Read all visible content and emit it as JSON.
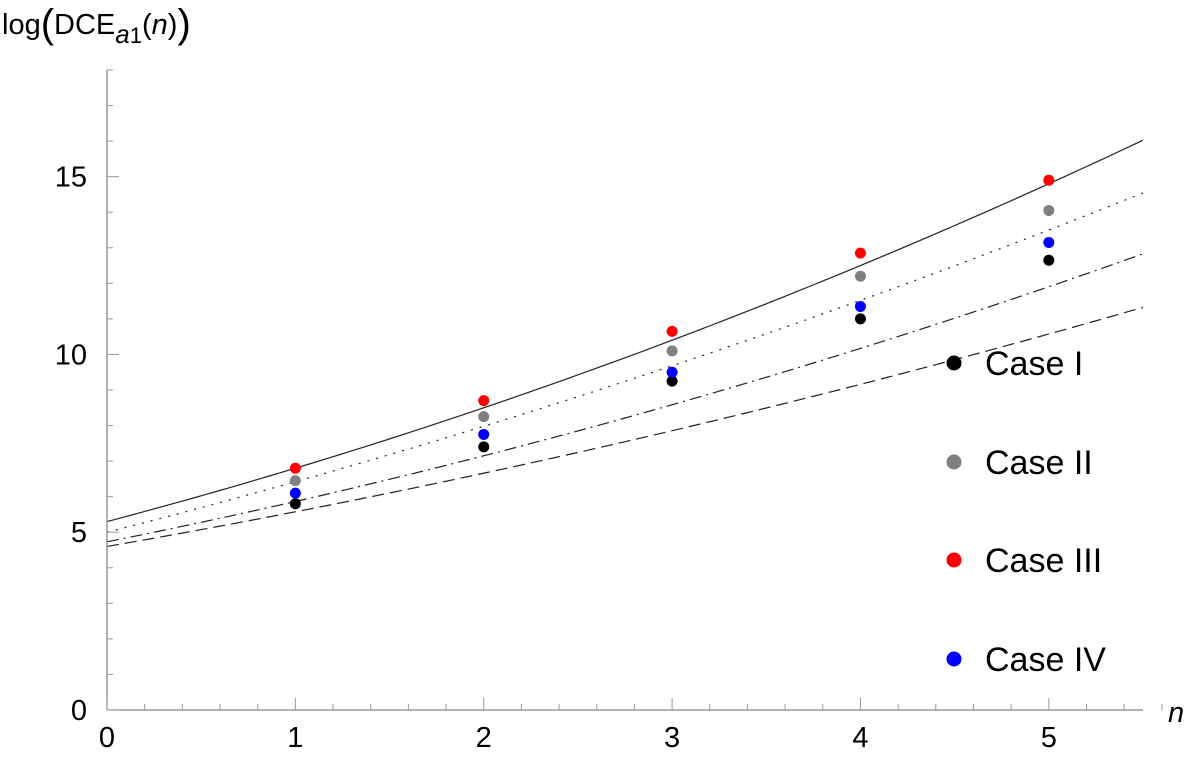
{
  "chart_data": {
    "type": "scatter",
    "ylabel_parts": {
      "pre": "log",
      "mid": "DCE",
      "sub_a": "a",
      "sub_1": "1",
      "arg_open": "(",
      "arg": "n",
      "arg_close": ")"
    },
    "xlabel": "n",
    "xlim": [
      0,
      5.5
    ],
    "ylim": [
      0,
      18
    ],
    "x_ticks": [
      0,
      1,
      2,
      3,
      4,
      5
    ],
    "y_ticks": [
      0,
      5,
      10,
      15
    ],
    "legend_position": "right",
    "series": [
      {
        "name": "Case I",
        "color": "#000000",
        "line_style": "dashed",
        "x": [
          1,
          2,
          3,
          4,
          5
        ],
        "y": [
          5.8,
          7.4,
          9.25,
          11.0,
          12.65
        ],
        "curve": [
          4.6,
          0.92,
          0.055
        ]
      },
      {
        "name": "Case II",
        "color": "#808080",
        "line_style": "dotted",
        "x": [
          1,
          2,
          3,
          4,
          5
        ],
        "y": [
          6.45,
          8.25,
          10.1,
          12.2,
          14.05
        ],
        "curve": [
          5.0,
          1.35,
          0.07
        ]
      },
      {
        "name": "Case III",
        "color": "#ff0000",
        "line_style": "solid",
        "x": [
          1,
          2,
          3,
          4,
          5
        ],
        "y": [
          6.8,
          8.7,
          10.65,
          12.85,
          14.9
        ],
        "curve": [
          5.3,
          1.4,
          0.1
        ]
      },
      {
        "name": "Case IV",
        "color": "#0000ff",
        "line_style": "dashdot",
        "x": [
          1,
          2,
          3,
          4,
          5
        ],
        "y": [
          6.1,
          7.75,
          9.5,
          11.35,
          13.15
        ],
        "curve": [
          4.73,
          1.06,
          0.075
        ]
      }
    ]
  }
}
